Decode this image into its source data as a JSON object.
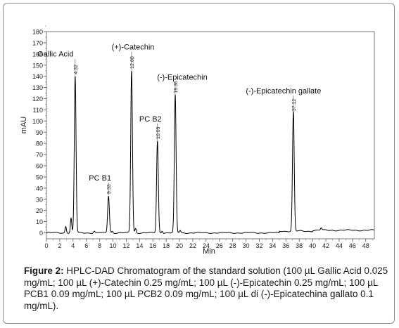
{
  "chart_data": {
    "type": "line",
    "ylabel": "mAU",
    "xlabel": "Min",
    "xlim": [
      0,
      49
    ],
    "ylim": [
      -5,
      180
    ],
    "x_ticks": [
      0,
      2,
      4,
      6,
      8,
      10,
      12,
      14,
      16,
      18,
      20,
      22,
      24,
      26,
      28,
      30,
      32,
      34,
      36,
      38,
      40,
      42,
      44,
      46,
      48
    ],
    "y_ticks": [
      0,
      10,
      20,
      30,
      40,
      50,
      60,
      70,
      80,
      90,
      100,
      110,
      120,
      130,
      140,
      150,
      160,
      170,
      180
    ],
    "x_tick_labels": [
      "0",
      "2",
      "4",
      "6",
      "8",
      "10",
      "12",
      "14",
      "16",
      "18",
      "20",
      "22",
      "24",
      "26",
      "28",
      "30",
      "32",
      "34",
      "36",
      "38",
      "40",
      "42",
      "44",
      "46",
      "48"
    ],
    "y_tick_labels": [
      "0",
      "10",
      "20",
      "30",
      "40",
      "50",
      "60",
      "70",
      "80",
      "90",
      "100",
      "110",
      "120",
      "130",
      "140",
      "150",
      "160",
      "170",
      "180"
    ],
    "peaks": [
      {
        "name": "Gallic Acid",
        "rt": 4.32,
        "rt_label": "4.32",
        "height": 140
      },
      {
        "name": "PC B1",
        "rt": 9.33,
        "rt_label": "9.33",
        "height": 33
      },
      {
        "name": "(+)-Catechin",
        "rt": 12.8,
        "rt_label": "12.80",
        "height": 145
      },
      {
        "name": "PC B2",
        "rt": 16.69,
        "rt_label": "16.69",
        "height": 82
      },
      {
        "name": "(-)-Epicatechin",
        "rt": 19.36,
        "rt_label": "19.36",
        "height": 123
      },
      {
        "name": "(-)-Epicatechin gallate",
        "rt": 37.12,
        "rt_label": "37.12",
        "height": 107
      }
    ],
    "minor_peaks": [
      {
        "rt": 2.9,
        "height": 6
      },
      {
        "rt": 3.7,
        "height": 13
      },
      {
        "rt": 7.2,
        "height": 1.5
      },
      {
        "rt": 9.9,
        "height": 1.5
      },
      {
        "rt": 13.4,
        "height": 4
      },
      {
        "rt": 17.4,
        "height": 2
      },
      {
        "rt": 20.1,
        "height": 2
      },
      {
        "rt": 41.3,
        "height": 2
      }
    ],
    "series_color": "#000000"
  },
  "caption": {
    "label": "Figure 2:",
    "text": " HPLC-DAD Chromatogram of the standard solution (100 µL Gallic Acid 0.025 mg/mL; 100 µL (+)-Catechin 0.25 mg/mL; 100 µL (-)-Epicatechin 0.25 mg/mL; 100 µL PCB1 0.09 mg/mL; 100 µL PCB2 0.09 mg/mL; 100 µL di (-)-Epicatechina gallato 0.1 mg/mL)."
  }
}
